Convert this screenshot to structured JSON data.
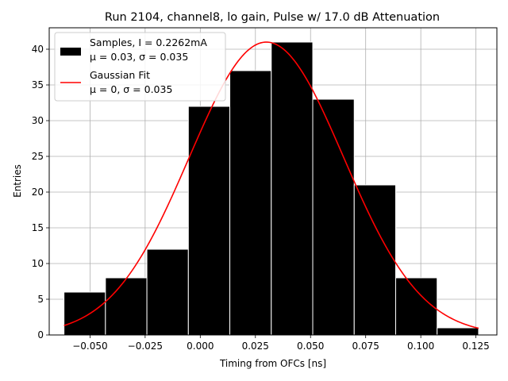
{
  "chart_data": {
    "type": "bar",
    "title": "Run 2104, channel8, lo gain, Pulse w/ 17.0 dB Attenuation",
    "xlabel": "Timing from OFCs [ns]",
    "ylabel": "Entries",
    "xlim": [
      -0.0685,
      0.1345
    ],
    "ylim": [
      0,
      43
    ],
    "grid": true,
    "legend_position": "top-left",
    "x_ticks": [
      -0.05,
      -0.025,
      0.0,
      0.025,
      0.05,
      0.075,
      0.1,
      0.125
    ],
    "x_tick_labels": [
      "−0.050",
      "−0.025",
      "0.000",
      "0.025",
      "0.050",
      "0.075",
      "0.100",
      "0.125"
    ],
    "y_ticks": [
      0,
      5,
      10,
      15,
      20,
      25,
      30,
      35,
      40
    ],
    "y_tick_labels": [
      "0",
      "5",
      "10",
      "15",
      "20",
      "25",
      "30",
      "35",
      "40"
    ],
    "histogram": {
      "name": "Samples, I = 0.2262mA",
      "stats_label": "μ = 0.03, σ = 0.035",
      "color": "#000000",
      "edge_color": "#ffffff",
      "bin_edges": [
        -0.0618,
        -0.043,
        -0.0242,
        -0.0054,
        0.0134,
        0.0322,
        0.051,
        0.0698,
        0.0886,
        0.1074,
        0.1262
      ],
      "counts": [
        6,
        8,
        12,
        32,
        37,
        41,
        33,
        21,
        8,
        1
      ]
    },
    "fit": {
      "name": "Gaussian Fit",
      "stats_label": "μ = 0, σ = 0.035",
      "color": "#ff0000",
      "mu": 0.03,
      "sigma": 0.035,
      "amplitude": 41,
      "x_range": [
        -0.0618,
        0.1262
      ]
    }
  }
}
